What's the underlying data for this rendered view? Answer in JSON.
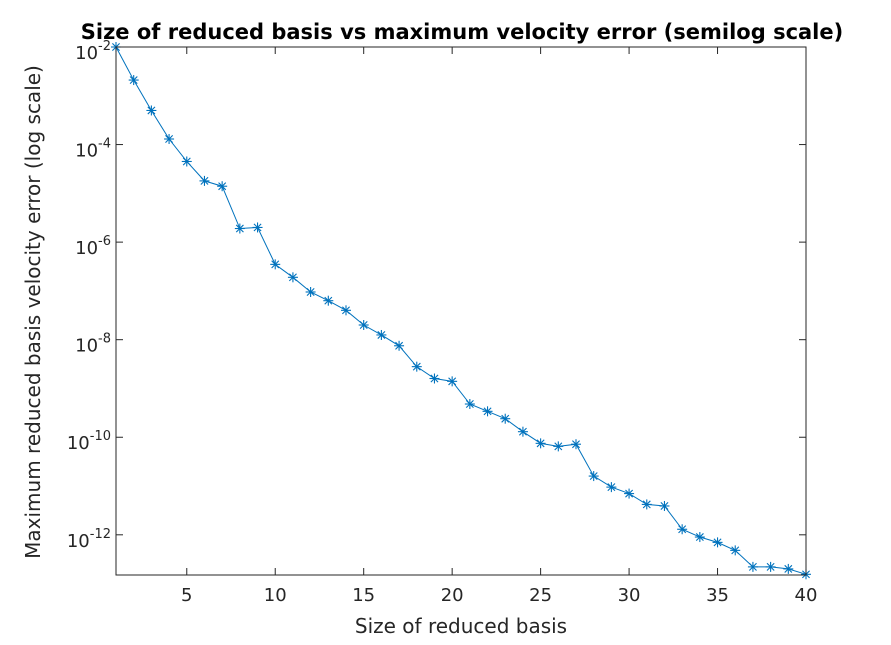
{
  "chart_data": {
    "type": "line",
    "scale": {
      "x": "linear",
      "y": "log"
    },
    "title": "Size of reduced basis vs maximum velocity error (semilog scale)",
    "xlabel": "Size of reduced basis",
    "ylabel": "Maximum reduced basis velocity error (log scale)",
    "xlim": [
      1,
      40
    ],
    "ylim": [
      1.5e-13,
      0.01
    ],
    "x_ticks": [
      5,
      10,
      15,
      20,
      25,
      30,
      35,
      40
    ],
    "y_ticks": [
      {
        "base": "10",
        "exponent": "-2",
        "value": 0.01
      },
      {
        "base": "10",
        "exponent": "-4",
        "value": 0.0001
      },
      {
        "base": "10",
        "exponent": "-6",
        "value": 1e-06
      },
      {
        "base": "10",
        "exponent": "-8",
        "value": 1e-08
      },
      {
        "base": "10",
        "exponent": "-10",
        "value": 1e-10
      },
      {
        "base": "10",
        "exponent": "-12",
        "value": 1e-12
      }
    ],
    "grid": false,
    "marker": "asterisk",
    "line_color": "#0072BD",
    "series": [
      {
        "x": [
          1,
          2,
          3,
          4,
          5,
          6,
          7,
          8,
          9,
          10,
          11,
          12,
          13,
          14,
          15,
          16,
          17,
          18,
          19,
          20,
          21,
          22,
          23,
          24,
          25,
          26,
          27,
          28,
          29,
          30,
          31,
          32,
          33,
          34,
          35,
          36,
          37,
          38,
          39,
          40
        ],
        "values": [
          0.01,
          0.0021,
          0.0005,
          0.00013,
          4.5e-05,
          1.8e-05,
          1.4e-05,
          1.9e-06,
          2e-06,
          3.5e-07,
          1.9e-07,
          9.5e-08,
          6.3e-08,
          4e-08,
          2e-08,
          1.25e-08,
          7.5e-09,
          2.8e-09,
          1.6e-09,
          1.4e-09,
          4.8e-10,
          3.4e-10,
          2.4e-10,
          1.3e-10,
          7.5e-11,
          6.5e-11,
          7.2e-11,
          1.6e-11,
          9.5e-12,
          7e-12,
          4.2e-12,
          3.9e-12,
          1.3e-12,
          9e-13,
          7e-13,
          4.8e-13,
          2.2e-13,
          2.2e-13,
          2e-13,
          1.55e-13
        ]
      }
    ]
  }
}
